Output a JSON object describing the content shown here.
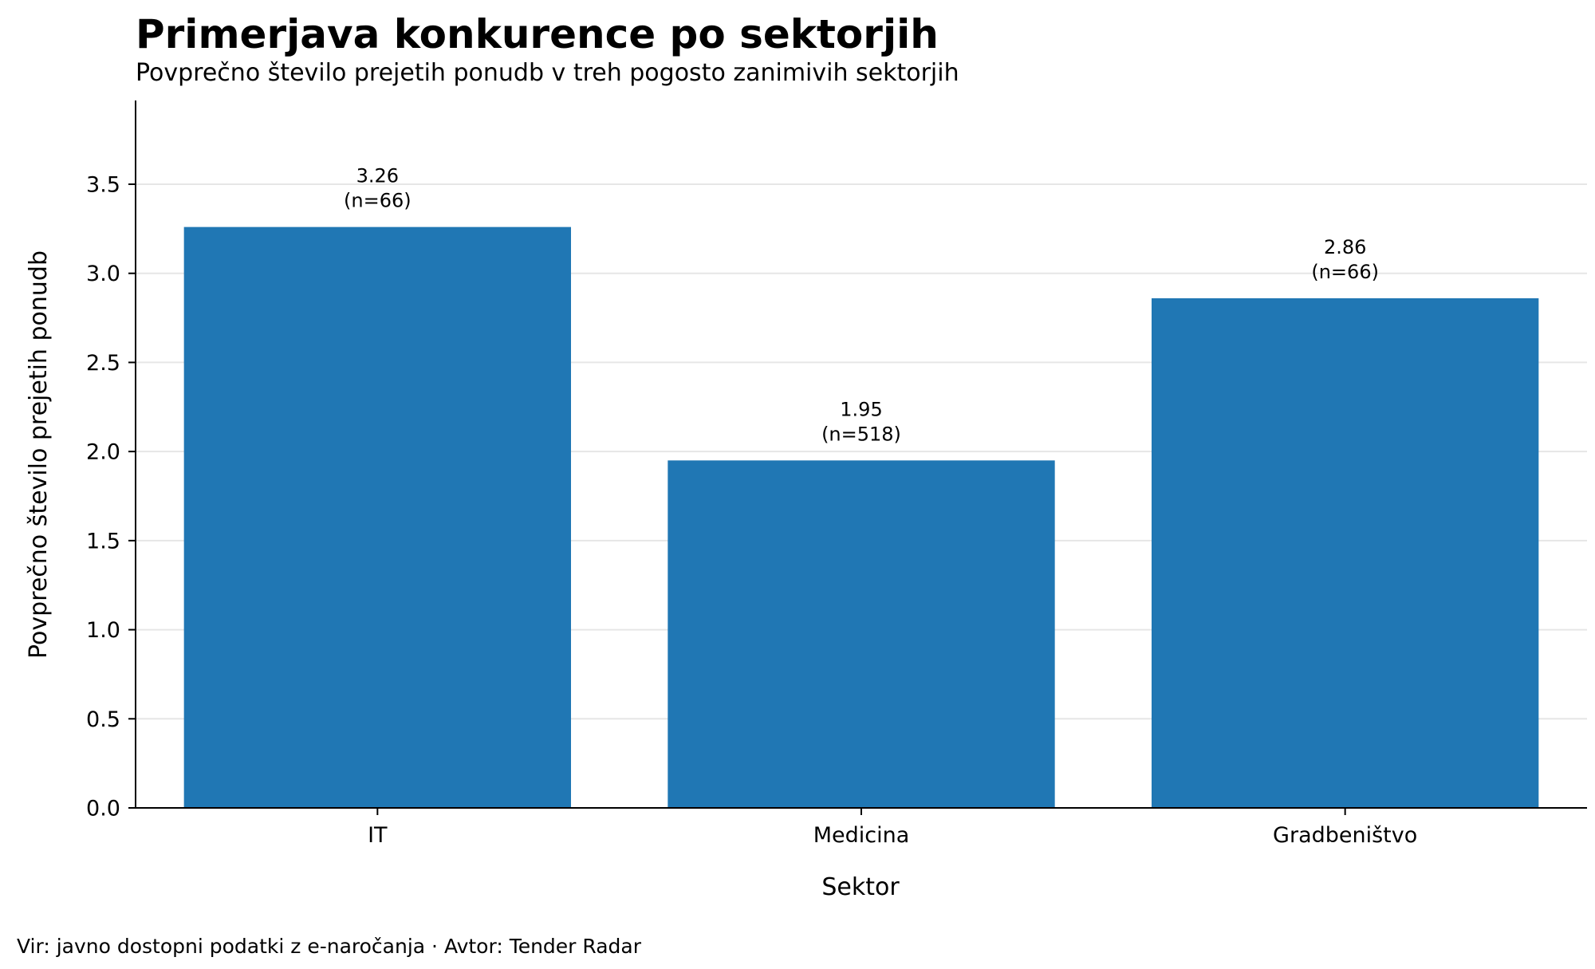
{
  "chart_data": {
    "type": "bar",
    "title": "Primerjava konkurence po sektorjih",
    "subtitle": "Povprečno število prejetih ponudb v treh pogosto zanimivih sektorjih",
    "xlabel": "Sektor",
    "ylabel": "Povprečno število prejetih ponudb",
    "categories": [
      "IT",
      "Medicina",
      "Gradbeništvo"
    ],
    "values": [
      3.26,
      1.95,
      2.86
    ],
    "data_labels": [
      {
        "value": "3.26",
        "count": "(n=66)"
      },
      {
        "value": "1.95",
        "count": "(n=518)"
      },
      {
        "value": "2.86",
        "count": "(n=66)"
      }
    ],
    "ylim": [
      0,
      3.97
    ],
    "yticks": [
      0.0,
      0.5,
      1.0,
      1.5,
      2.0,
      2.5,
      3.0,
      3.5
    ],
    "ytick_labels": [
      "0.0",
      "0.5",
      "1.0",
      "1.5",
      "2.0",
      "2.5",
      "3.0",
      "3.5"
    ],
    "grid": "horizontal",
    "bar_color": "#2077b4",
    "source": "Vir: javno dostopni podatki z e-naročanja · Avtor: Tender Radar"
  }
}
